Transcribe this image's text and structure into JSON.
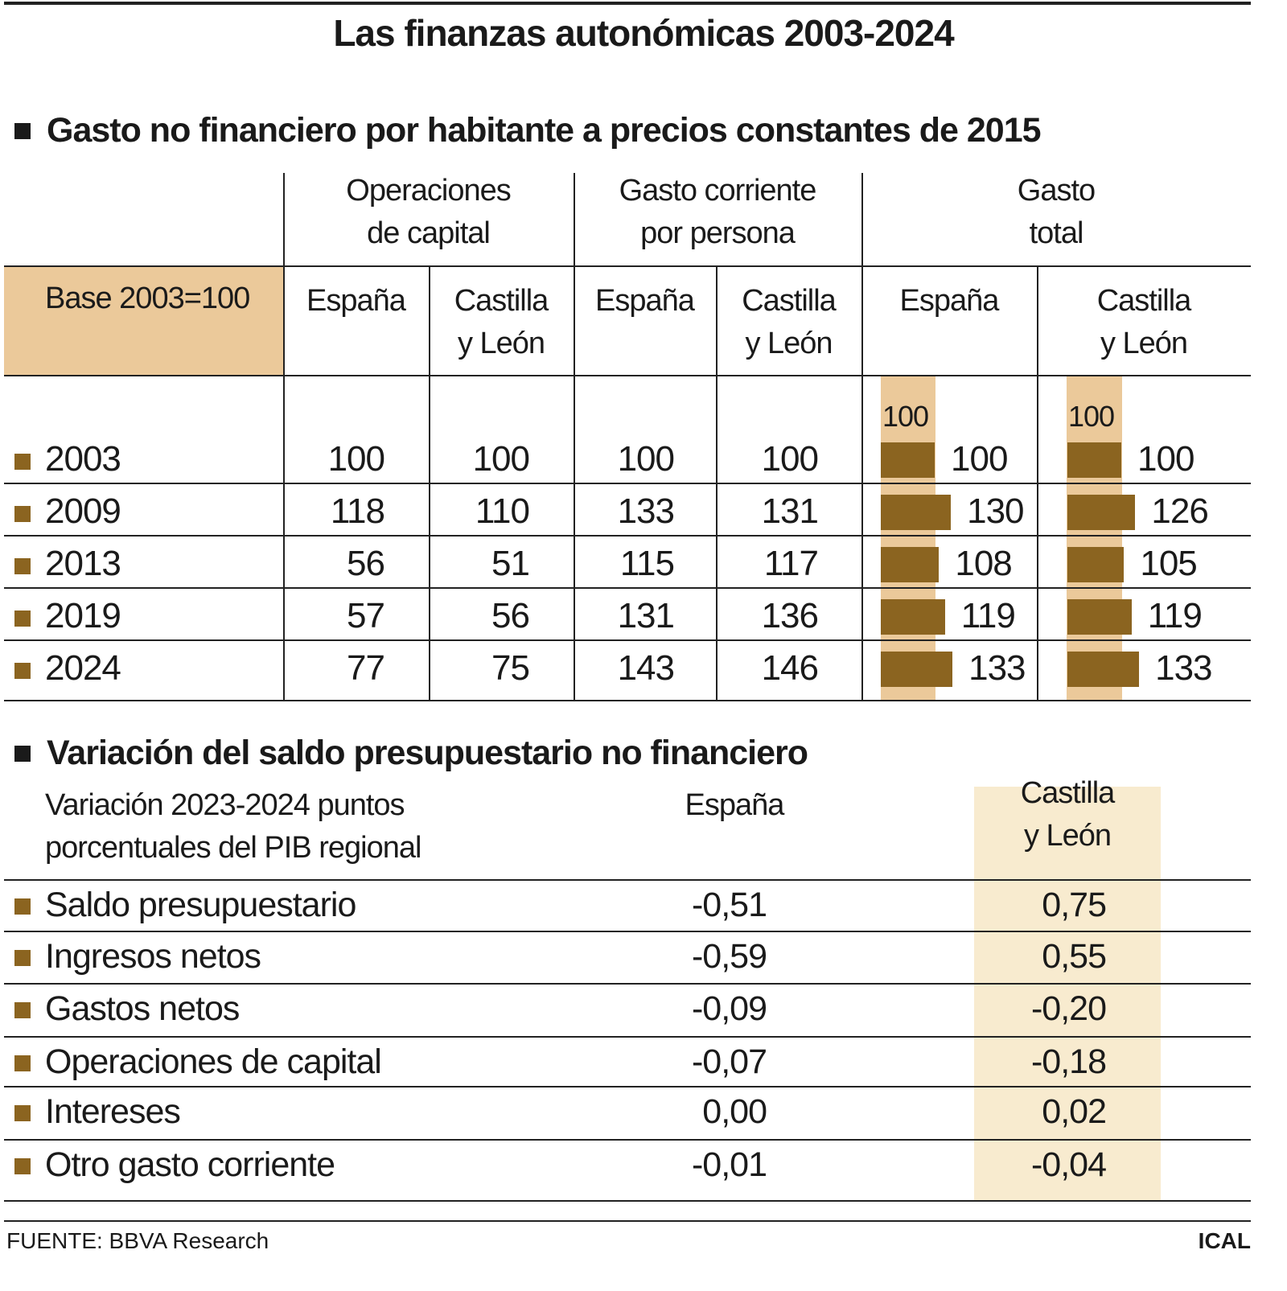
{
  "title": "Las finanzas autonómicas 2003-2024",
  "colors": {
    "peach": "#ebc99a",
    "brown": "#8b6420",
    "cream": "#f8ebcf",
    "line": "#222222"
  },
  "section1": {
    "heading": "Gasto no financiero por habitante a precios constantes de 2015",
    "base_label": "Base 2003=100",
    "groups": [
      "Operaciones\nde capital",
      "Gasto corriente\npor persona",
      "Gasto\ntotal"
    ],
    "subcolumns": [
      "España",
      "Castilla\ny León",
      "España",
      "Castilla\ny León",
      "España",
      "Castilla\ny León"
    ],
    "bar_reference_label": "100"
  },
  "chart_data": {
    "type": "table",
    "title": "Gasto no financiero por habitante a precios constantes de 2015",
    "categories": [
      "2003",
      "2009",
      "2013",
      "2019",
      "2024"
    ],
    "columns": [
      "Operaciones de capital - España",
      "Operaciones de capital - Castilla y León",
      "Gasto corriente por persona - España",
      "Gasto corriente por persona - Castilla y León",
      "Gasto total - España",
      "Gasto total - Castilla y León"
    ],
    "rows": [
      {
        "year": "2003",
        "values": [
          "100",
          "100",
          "100",
          "100",
          "100",
          "100"
        ]
      },
      {
        "year": "2009",
        "values": [
          "118",
          "110",
          "133",
          "131",
          "130",
          "126"
        ]
      },
      {
        "year": "2013",
        "values": [
          "56",
          "51",
          "115",
          "117",
          "108",
          "105"
        ]
      },
      {
        "year": "2019",
        "values": [
          "57",
          "56",
          "131",
          "136",
          "119",
          "119"
        ]
      },
      {
        "year": "2024",
        "values": [
          "77",
          "75",
          "143",
          "146",
          "133",
          "133"
        ]
      }
    ],
    "bar_series": [
      {
        "name": "Gasto total España",
        "values": [
          100,
          130,
          108,
          119,
          133
        ]
      },
      {
        "name": "Gasto total Castilla y León",
        "values": [
          100,
          126,
          105,
          119,
          133
        ]
      }
    ]
  },
  "section2": {
    "heading": "Variación del saldo presupuestario no financiero",
    "subheading": "Variación 2023-2024 puntos\nporcentuales del PIB regional",
    "col_espana": "España",
    "col_cyl": "Castilla\ny León",
    "rows": [
      {
        "label": "Saldo presupuestario",
        "espana": "-0,51",
        "cyl": "0,75"
      },
      {
        "label": "Ingresos netos",
        "espana": "-0,59",
        "cyl": "0,55"
      },
      {
        "label": "Gastos netos",
        "espana": "-0,09",
        "cyl": "-0,20"
      },
      {
        "label": "Operaciones de capital",
        "espana": "-0,07",
        "cyl": "-0,18"
      },
      {
        "label": "Intereses",
        "espana": "0,00",
        "cyl": "0,02"
      },
      {
        "label": "Otro gasto corriente",
        "espana": "-0,01",
        "cyl": "-0,04"
      }
    ]
  },
  "footer": {
    "source": "FUENTE: BBVA Research",
    "brand": "ICAL"
  }
}
